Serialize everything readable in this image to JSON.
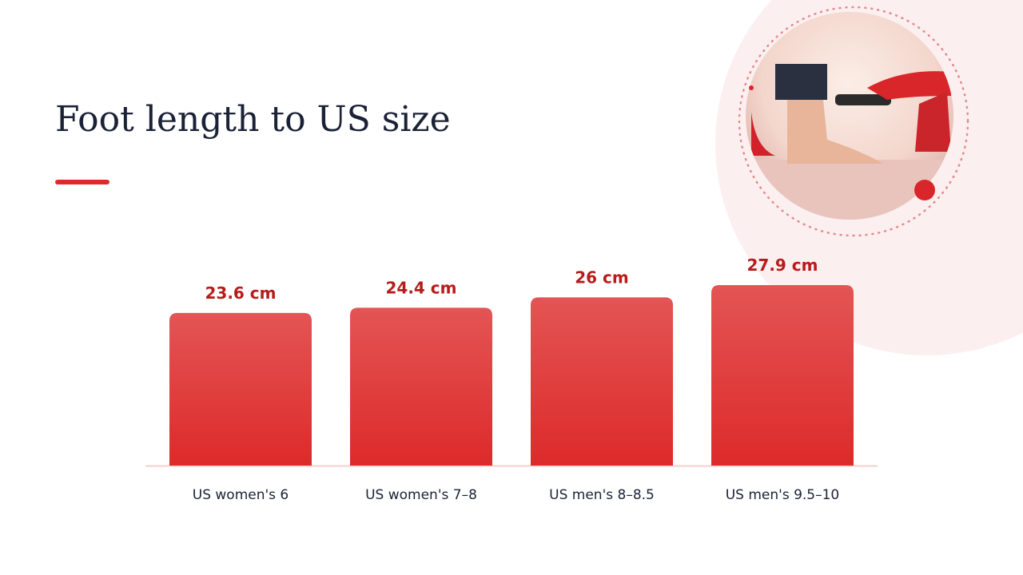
{
  "chart_data": {
    "type": "bar",
    "title": "Foot length to US size",
    "categories": [
      "US women's 6",
      "US women's 7–8",
      "US men's 8–8.5",
      "US men's 9.5–10"
    ],
    "values": [
      23.6,
      24.4,
      26,
      27.9
    ],
    "value_labels": [
      "23.6 cm",
      "24.4 cm",
      "26 cm",
      "27.9 cm"
    ],
    "color": "#dd2a2a"
  }
}
